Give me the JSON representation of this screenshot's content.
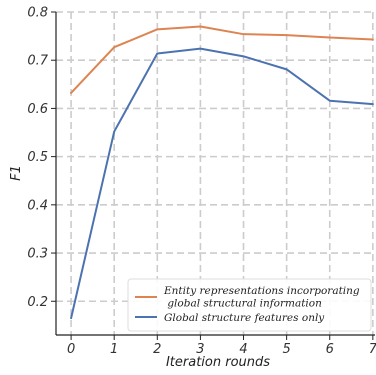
{
  "chart_data": {
    "type": "line",
    "xlabel": "Iteration rounds",
    "ylabel": "F1",
    "x": [
      0,
      1,
      2,
      3,
      4,
      5,
      6,
      7
    ],
    "xticks": [
      "0",
      "1",
      "2",
      "3",
      "4",
      "5",
      "6",
      "7"
    ],
    "yticks": [
      "0.2",
      "0.3",
      "0.4",
      "0.5",
      "0.6",
      "0.7",
      "0.8"
    ],
    "xlim": [
      -0.35,
      7.05
    ],
    "ylim": [
      0.13,
      0.8
    ],
    "grid": true,
    "legend_position": "bottom-right",
    "series": [
      {
        "name": "Entity representations incorporating global structural information",
        "legend_lines": [
          "Entity representations incorporating",
          " global structural information"
        ],
        "color": "#dd8452",
        "values": [
          0.632,
          0.727,
          0.764,
          0.77,
          0.754,
          0.752,
          0.747,
          0.743
        ]
      },
      {
        "name": "Global structure features only",
        "legend_lines": [
          "Global structure features only"
        ],
        "color": "#4c72b0",
        "values": [
          0.165,
          0.552,
          0.714,
          0.724,
          0.708,
          0.681,
          0.616,
          0.609
        ]
      }
    ]
  }
}
